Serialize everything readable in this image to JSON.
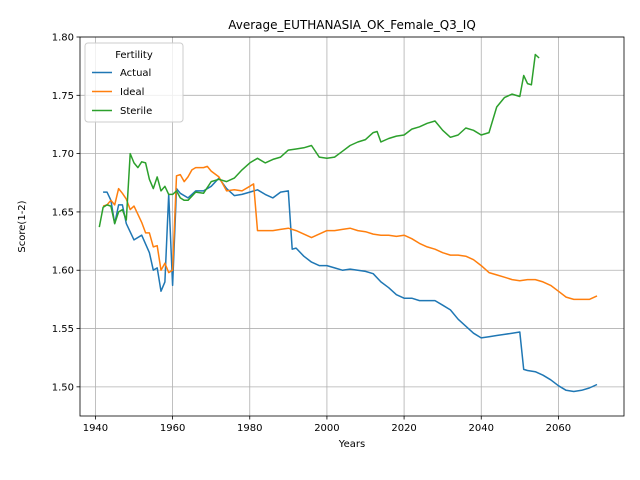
{
  "chart_data": {
    "type": "line",
    "title": "Average_EUTHANASIA_OK_Female_Q3_IQ",
    "xlabel": "Years",
    "ylabel": "Score(1-2)",
    "xlim": [
      1936,
      2077
    ],
    "ylim": [
      1.475,
      1.8
    ],
    "xticks": [
      1940,
      1960,
      1980,
      2000,
      2020,
      2040,
      2060
    ],
    "yticks": [
      1.5,
      1.55,
      1.6,
      1.65,
      1.7,
      1.75,
      1.8
    ],
    "xtick_labels": [
      "1940",
      "1960",
      "1980",
      "2000",
      "2020",
      "2040",
      "2060"
    ],
    "ytick_labels": [
      "1.50",
      "1.55",
      "1.60",
      "1.65",
      "1.70",
      "1.75",
      "1.80"
    ],
    "grid": true,
    "legend": {
      "title": "Fertility",
      "location": "top-left"
    },
    "series": [
      {
        "name": "Actual",
        "color": "#1f77b4",
        "x": [
          1942,
          1943,
          1944,
          1945,
          1946,
          1947,
          1948,
          1950,
          1952,
          1954,
          1955,
          1956,
          1957,
          1958,
          1959,
          1960,
          1961,
          1962,
          1964,
          1966,
          1968,
          1970,
          1972,
          1974,
          1976,
          1978,
          1980,
          1982,
          1984,
          1986,
          1988,
          1990,
          1991,
          1992,
          1994,
          1996,
          1998,
          2000,
          2002,
          2004,
          2006,
          2008,
          2010,
          2012,
          2014,
          2016,
          2018,
          2020,
          2022,
          2024,
          2026,
          2028,
          2030,
          2032,
          2034,
          2036,
          2038,
          2040,
          2042,
          2044,
          2046,
          2048,
          2050,
          2051,
          2052,
          2054,
          2056,
          2058,
          2060,
          2062,
          2064,
          2066,
          2068,
          2070
        ],
        "y": [
          1.667,
          1.667,
          1.66,
          1.64,
          1.656,
          1.656,
          1.64,
          1.626,
          1.63,
          1.615,
          1.6,
          1.602,
          1.582,
          1.59,
          1.665,
          1.587,
          1.67,
          1.666,
          1.662,
          1.668,
          1.668,
          1.672,
          1.679,
          1.67,
          1.664,
          1.665,
          1.667,
          1.669,
          1.665,
          1.662,
          1.667,
          1.668,
          1.618,
          1.619,
          1.612,
          1.607,
          1.604,
          1.604,
          1.602,
          1.6,
          1.601,
          1.6,
          1.599,
          1.597,
          1.59,
          1.585,
          1.579,
          1.576,
          1.576,
          1.574,
          1.574,
          1.574,
          1.57,
          1.566,
          1.558,
          1.552,
          1.546,
          1.542,
          1.543,
          1.544,
          1.545,
          1.546,
          1.547,
          1.515,
          1.514,
          1.513,
          1.51,
          1.506,
          1.501,
          1.497,
          1.496,
          1.497,
          1.499,
          1.502
        ]
      },
      {
        "name": "Ideal",
        "color": "#ff7f0e",
        "x": [
          1942,
          1943,
          1944,
          1945,
          1946,
          1947,
          1948,
          1949,
          1950,
          1951,
          1952,
          1953,
          1954,
          1955,
          1956,
          1957,
          1958,
          1959,
          1960,
          1961,
          1962,
          1963,
          1964,
          1965,
          1966,
          1968,
          1969,
          1970,
          1972,
          1974,
          1976,
          1978,
          1980,
          1981,
          1982,
          1984,
          1986,
          1988,
          1990,
          1992,
          1994,
          1996,
          1998,
          2000,
          2002,
          2004,
          2006,
          2008,
          2010,
          2012,
          2014,
          2016,
          2018,
          2020,
          2022,
          2024,
          2026,
          2028,
          2030,
          2032,
          2034,
          2036,
          2038,
          2040,
          2042,
          2044,
          2046,
          2048,
          2050,
          2052,
          2054,
          2056,
          2058,
          2060,
          2062,
          2064,
          2066,
          2068,
          2070
        ],
        "y": [
          1.655,
          1.656,
          1.66,
          1.656,
          1.67,
          1.666,
          1.661,
          1.652,
          1.655,
          1.648,
          1.641,
          1.632,
          1.632,
          1.62,
          1.621,
          1.6,
          1.606,
          1.598,
          1.6,
          1.681,
          1.682,
          1.676,
          1.68,
          1.686,
          1.688,
          1.688,
          1.689,
          1.685,
          1.68,
          1.668,
          1.669,
          1.668,
          1.672,
          1.674,
          1.634,
          1.634,
          1.634,
          1.635,
          1.636,
          1.634,
          1.631,
          1.628,
          1.631,
          1.634,
          1.634,
          1.635,
          1.636,
          1.634,
          1.633,
          1.631,
          1.63,
          1.63,
          1.629,
          1.63,
          1.627,
          1.623,
          1.62,
          1.618,
          1.615,
          1.613,
          1.613,
          1.612,
          1.609,
          1.604,
          1.598,
          1.596,
          1.594,
          1.592,
          1.591,
          1.592,
          1.592,
          1.59,
          1.587,
          1.582,
          1.577,
          1.575,
          1.575,
          1.575,
          1.578
        ]
      },
      {
        "name": "Sterile",
        "color": "#2ca02c",
        "x": [
          1941,
          1942,
          1943,
          1944,
          1945,
          1946,
          1947,
          1948,
          1949,
          1950,
          1951,
          1952,
          1953,
          1954,
          1955,
          1956,
          1957,
          1958,
          1959,
          1960,
          1961,
          1962,
          1963,
          1964,
          1966,
          1968,
          1970,
          1972,
          1974,
          1976,
          1978,
          1980,
          1982,
          1984,
          1986,
          1988,
          1990,
          1992,
          1994,
          1996,
          1998,
          2000,
          2002,
          2004,
          2006,
          2008,
          2010,
          2012,
          2013,
          2014,
          2016,
          2018,
          2020,
          2022,
          2024,
          2026,
          2028,
          2030,
          2032,
          2034,
          2036,
          2038,
          2040,
          2042,
          2044,
          2046,
          2048,
          2050,
          2051,
          2052,
          2053,
          2054,
          2055
        ],
        "y": [
          1.637,
          1.654,
          1.656,
          1.655,
          1.64,
          1.65,
          1.652,
          1.643,
          1.7,
          1.692,
          1.688,
          1.693,
          1.692,
          1.678,
          1.67,
          1.68,
          1.668,
          1.672,
          1.665,
          1.665,
          1.668,
          1.662,
          1.66,
          1.66,
          1.667,
          1.666,
          1.676,
          1.678,
          1.676,
          1.679,
          1.686,
          1.692,
          1.696,
          1.692,
          1.695,
          1.697,
          1.703,
          1.704,
          1.705,
          1.707,
          1.697,
          1.696,
          1.697,
          1.702,
          1.707,
          1.71,
          1.712,
          1.718,
          1.719,
          1.71,
          1.713,
          1.715,
          1.716,
          1.721,
          1.723,
          1.726,
          1.728,
          1.72,
          1.714,
          1.716,
          1.722,
          1.72,
          1.716,
          1.718,
          1.74,
          1.748,
          1.751,
          1.749,
          1.767,
          1.76,
          1.759,
          1.785,
          1.782
        ]
      }
    ]
  }
}
